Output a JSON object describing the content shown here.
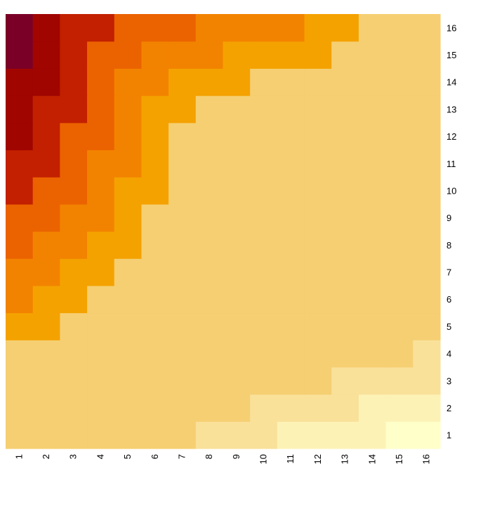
{
  "chart_data": {
    "type": "heatmap",
    "title": "",
    "xlabel": "",
    "ylabel": "",
    "x_ticks": [
      "1",
      "2",
      "3",
      "4",
      "5",
      "6",
      "7",
      "8",
      "9",
      "10",
      "11",
      "12",
      "13",
      "14",
      "15",
      "16"
    ],
    "y_ticks": [
      "1",
      "2",
      "3",
      "4",
      "5",
      "6",
      "7",
      "8",
      "9",
      "10",
      "11",
      "12",
      "13",
      "14",
      "15",
      "16"
    ],
    "colorscale": [
      "#FFFFCA",
      "#FDF2B6",
      "#F9E19A",
      "#F5CF72",
      "#F4A200",
      "#F28300",
      "#EB6300",
      "#C22000",
      "#A00500",
      "#7A0028"
    ],
    "legend": "none",
    "grid": false,
    "z_levels_by_row_bottom_to_top": [
      [
        3,
        3,
        3,
        3,
        3,
        3,
        3,
        2,
        2,
        2,
        1,
        1,
        1,
        1,
        0,
        0
      ],
      [
        3,
        3,
        3,
        3,
        3,
        3,
        3,
        3,
        3,
        2,
        2,
        2,
        2,
        1,
        1,
        1
      ],
      [
        3,
        3,
        3,
        3,
        3,
        3,
        3,
        3,
        3,
        3,
        3,
        3,
        2,
        2,
        2,
        2
      ],
      [
        3,
        3,
        3,
        3,
        3,
        3,
        3,
        3,
        3,
        3,
        3,
        3,
        3,
        3,
        3,
        2
      ],
      [
        4,
        4,
        3,
        3,
        3,
        3,
        3,
        3,
        3,
        3,
        3,
        3,
        3,
        3,
        3,
        3
      ],
      [
        5,
        4,
        4,
        3,
        3,
        3,
        3,
        3,
        3,
        3,
        3,
        3,
        3,
        3,
        3,
        3
      ],
      [
        5,
        5,
        4,
        4,
        3,
        3,
        3,
        3,
        3,
        3,
        3,
        3,
        3,
        3,
        3,
        3
      ],
      [
        6,
        5,
        5,
        4,
        4,
        3,
        3,
        3,
        3,
        3,
        3,
        3,
        3,
        3,
        3,
        3
      ],
      [
        6,
        6,
        5,
        5,
        4,
        3,
        3,
        3,
        3,
        3,
        3,
        3,
        3,
        3,
        3,
        3
      ],
      [
        7,
        6,
        6,
        5,
        4,
        4,
        3,
        3,
        3,
        3,
        3,
        3,
        3,
        3,
        3,
        3
      ],
      [
        7,
        7,
        6,
        5,
        5,
        4,
        3,
        3,
        3,
        3,
        3,
        3,
        3,
        3,
        3,
        3
      ],
      [
        8,
        7,
        6,
        6,
        5,
        4,
        3,
        3,
        3,
        3,
        3,
        3,
        3,
        3,
        3,
        3
      ],
      [
        8,
        7,
        7,
        6,
        5,
        4,
        4,
        3,
        3,
        3,
        3,
        3,
        3,
        3,
        3,
        3
      ],
      [
        8,
        8,
        7,
        6,
        5,
        5,
        4,
        4,
        4,
        3,
        3,
        3,
        3,
        3,
        3,
        3
      ],
      [
        9,
        8,
        7,
        6,
        6,
        5,
        5,
        5,
        4,
        4,
        4,
        4,
        3,
        3,
        3,
        3
      ],
      [
        9,
        8,
        7,
        7,
        6,
        6,
        6,
        5,
        5,
        5,
        5,
        4,
        4,
        3,
        3,
        3
      ]
    ]
  }
}
